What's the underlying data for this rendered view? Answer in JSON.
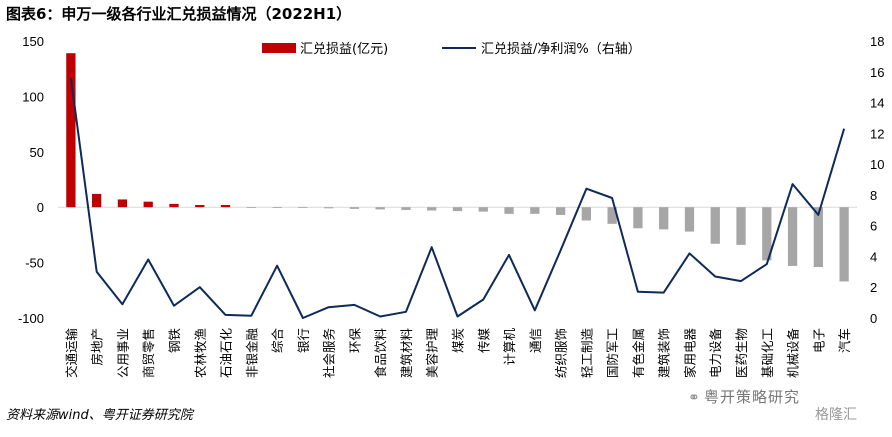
{
  "title": "图表6：申万一级各行业汇兑损益情况（2022H1）",
  "source": "资料来源wind、粤开证券研究院",
  "watermark": {
    "main": "粤开策略研究",
    "sub": "格隆汇",
    "icon": "wechat-icon"
  },
  "colors": {
    "bar_positive": "#C00000",
    "bar_negative": "#A6A6A6",
    "line": "#0D2A5A"
  },
  "chart_data": {
    "type": "bar+line",
    "categories": [
      "交通运输",
      "房地产",
      "公用事业",
      "商贸零售",
      "钢铁",
      "农林牧渔",
      "石油石化",
      "非银金融",
      "综合",
      "银行",
      "社会服务",
      "环保",
      "食品饮料",
      "建筑材料",
      "美容护理",
      "煤炭",
      "传媒",
      "计算机",
      "通信",
      "纺织服饰",
      "轻工制造",
      "国防军工",
      "有色金属",
      "建筑装饰",
      "家用电器",
      "电力设备",
      "医药生物",
      "基础化工",
      "机械设备",
      "电子",
      "汽车"
    ],
    "series": [
      {
        "name": "汇兑损益(亿元)",
        "axis": "left",
        "type": "bar",
        "values": [
          139,
          12,
          7,
          5,
          3,
          2,
          2,
          -0.5,
          -0.5,
          -0.5,
          -1,
          -1.5,
          -2,
          -2.5,
          -3,
          -3.5,
          -4,
          -6,
          -6,
          -7,
          -12,
          -15,
          -19,
          -20,
          -22,
          -33,
          -34,
          -48,
          -53,
          -54,
          -67
        ]
      },
      {
        "name": "汇兑损益/净利润%（右轴）",
        "axis": "right",
        "type": "line",
        "values": [
          15.6,
          3,
          0.9,
          3.8,
          0.8,
          2,
          0.2,
          0.15,
          3.4,
          0,
          0.7,
          0.85,
          0.1,
          0.4,
          4.6,
          0.1,
          1.2,
          4.1,
          0.5,
          4.4,
          8.4,
          7.8,
          1.7,
          1.65,
          4.2,
          2.7,
          2.4,
          3.5,
          8.7,
          6.7,
          12.3
        ]
      }
    ],
    "left_axis": {
      "min": -100,
      "max": 150,
      "ticks": [
        -100,
        -50,
        0,
        50,
        100,
        150
      ]
    },
    "right_axis": {
      "min": 0,
      "max": 18,
      "ticks": [
        0,
        2,
        4,
        6,
        8,
        10,
        12,
        14,
        16,
        18
      ]
    },
    "legend_placement": "top"
  }
}
